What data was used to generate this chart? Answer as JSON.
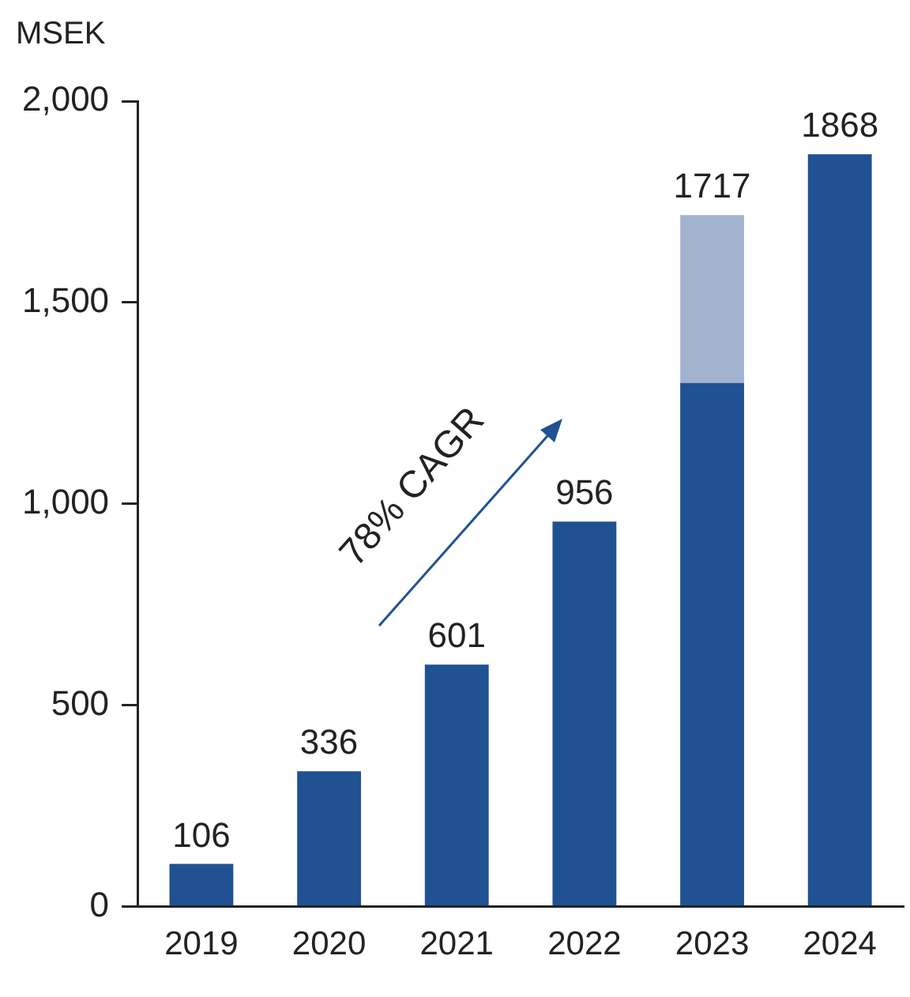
{
  "chart_data": {
    "type": "bar",
    "ylabel": "MSEK",
    "categories": [
      "2019",
      "2020",
      "2021",
      "2022",
      "2023",
      "2024"
    ],
    "series": [
      {
        "color": "#1f5193",
        "values": [
          106,
          336,
          601,
          956,
          1300,
          1868
        ]
      },
      {
        "color": "#a2b3d0",
        "values": [
          null,
          null,
          null,
          null,
          417,
          null
        ]
      }
    ],
    "stacked": true,
    "totals": [
      "106",
      "336",
      "601",
      "956",
      "1717",
      "1868"
    ],
    "ylim": [
      0,
      2000
    ],
    "yticks": [
      {
        "value": 0,
        "label": "0"
      },
      {
        "value": 500,
        "label": "500"
      },
      {
        "value": 1000,
        "label": "1,000"
      },
      {
        "value": 1500,
        "label": "1,500"
      },
      {
        "value": 2000,
        "label": "2,000"
      }
    ],
    "grid": false,
    "legend": false,
    "annotations": [
      "78% CAGR"
    ]
  }
}
